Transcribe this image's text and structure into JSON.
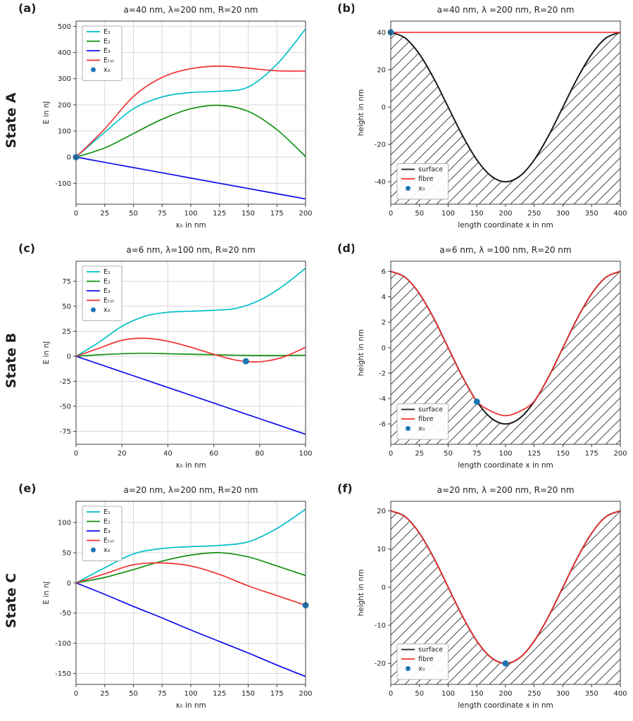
{
  "states": [
    "State A",
    "State B",
    "State C"
  ],
  "chart_data": [
    {
      "panel": "(a)",
      "title": "a=40 nm, λ=200 nm, R=20 nm",
      "type": "line",
      "xlabel": "x₀ in nm",
      "ylabel": "E in nJ",
      "xlim": [
        0,
        200
      ],
      "ylim": [
        -180,
        520
      ],
      "xticks": [
        0,
        25,
        50,
        75,
        100,
        125,
        150,
        175,
        200
      ],
      "yticks": [
        -100,
        0,
        100,
        200,
        300,
        400,
        500
      ],
      "grid": true,
      "legend_pos": "upper-left",
      "hatch_below": null,
      "series": [
        {
          "label": "E₁",
          "color": "#00bfc8",
          "x": [
            0,
            25,
            50,
            75,
            100,
            125,
            150,
            175,
            200
          ],
          "y": [
            0,
            95,
            185,
            230,
            247,
            252,
            268,
            355,
            490
          ]
        },
        {
          "label": "E₂",
          "color": "#119111",
          "x": [
            0,
            25,
            50,
            75,
            100,
            125,
            150,
            175,
            200
          ],
          "y": [
            0,
            35,
            90,
            145,
            185,
            198,
            175,
            105,
            2
          ]
        },
        {
          "label": "E₃",
          "color": "#0d0dee",
          "x": [
            0,
            25,
            50,
            75,
            100,
            125,
            150,
            175,
            200
          ],
          "y": [
            0,
            -20,
            -40,
            -60,
            -80,
            -100,
            -120,
            -140,
            -160
          ]
        },
        {
          "label": "Eₜₒₜ",
          "color": "#f03030",
          "x": [
            0,
            25,
            50,
            75,
            100,
            125,
            150,
            175,
            200
          ],
          "y": [
            0,
            108,
            232,
            305,
            338,
            348,
            340,
            330,
            329
          ]
        }
      ],
      "marker": {
        "label": "x₀",
        "color": "#1f77b4",
        "x": 0,
        "y": 0
      }
    },
    {
      "panel": "(b)",
      "title": "a=40 nm, λ =200 nm, R=20 nm",
      "type": "line",
      "xlabel": "length coordinate x in nm",
      "ylabel": "height in nm",
      "xlim": [
        0,
        400
      ],
      "ylim": [
        -52,
        46
      ],
      "xticks": [
        0,
        50,
        100,
        150,
        200,
        250,
        300,
        350,
        400
      ],
      "yticks": [
        -40,
        -20,
        0,
        20,
        40
      ],
      "grid": false,
      "legend_pos": "lower-left",
      "hatch_below": "surface",
      "series": [
        {
          "label": "surface",
          "color": "#1a1a1a",
          "x": [
            0,
            25,
            50,
            75,
            100,
            125,
            150,
            175,
            200,
            225,
            250,
            275,
            300,
            325,
            350,
            375,
            400
          ],
          "y": [
            40,
            36.96,
            28.28,
            15.31,
            0,
            -15.31,
            -28.28,
            -36.96,
            -40,
            -36.96,
            -28.28,
            -15.31,
            0,
            15.31,
            28.28,
            36.96,
            40
          ]
        },
        {
          "label": "fibre",
          "color": "#f03030",
          "x": [
            0,
            400
          ],
          "y": [
            40,
            40
          ]
        }
      ],
      "marker": {
        "label": "x₀",
        "color": "#1f77b4",
        "x": 0,
        "y": 40
      }
    },
    {
      "panel": "(c)",
      "title": "a=6 nm, λ=100 nm, R=20 nm",
      "type": "line",
      "xlabel": "x₀ in nm",
      "ylabel": "E in nJ",
      "xlim": [
        0,
        100
      ],
      "ylim": [
        -88,
        95
      ],
      "xticks": [
        0,
        20,
        40,
        60,
        80,
        100
      ],
      "yticks": [
        -75,
        -50,
        -25,
        0,
        25,
        50,
        75
      ],
      "grid": true,
      "legend_pos": "upper-left",
      "hatch_below": null,
      "series": [
        {
          "label": "E₁",
          "color": "#00bfc8",
          "x": [
            0,
            10,
            20,
            30,
            40,
            50,
            60,
            70,
            80,
            90,
            100
          ],
          "y": [
            0,
            14,
            30,
            40,
            44,
            45,
            46,
            48,
            56,
            70,
            88
          ]
        },
        {
          "label": "E₂",
          "color": "#119111",
          "x": [
            0,
            10,
            20,
            30,
            40,
            50,
            60,
            70,
            80,
            90,
            100
          ],
          "y": [
            0,
            1.5,
            2.5,
            3,
            2.5,
            2,
            1.5,
            1,
            0.8,
            0.8,
            1
          ]
        },
        {
          "label": "E₃",
          "color": "#0d0dee",
          "x": [
            0,
            10,
            20,
            30,
            40,
            50,
            60,
            70,
            80,
            90,
            100
          ],
          "y": [
            0,
            -7.8,
            -15.6,
            -23.4,
            -31.2,
            -39,
            -46.8,
            -54.6,
            -62.4,
            -70.2,
            -78
          ]
        },
        {
          "label": "Eₜₒₜ",
          "color": "#f03030",
          "x": [
            0,
            10,
            20,
            30,
            40,
            50,
            60,
            70,
            80,
            90,
            100
          ],
          "y": [
            0,
            8,
            16,
            18,
            15,
            9,
            2,
            -4,
            -5.5,
            -1,
            9
          ]
        }
      ],
      "marker": {
        "label": "x₀",
        "color": "#1f77b4",
        "x": 74,
        "y": -5
      }
    },
    {
      "panel": "(d)",
      "title": "a=6 nm, λ =100 nm, R=20 nm",
      "type": "line",
      "xlabel": "length coordinate x in nm",
      "ylabel": "height in nm",
      "xlim": [
        0,
        200
      ],
      "ylim": [
        -7.6,
        6.8
      ],
      "xticks": [
        0,
        25,
        50,
        75,
        100,
        125,
        150,
        175,
        200
      ],
      "yticks": [
        -6,
        -4,
        -2,
        0,
        2,
        4,
        6
      ],
      "grid": false,
      "legend_pos": "lower-left",
      "hatch_below": "surface",
      "series": [
        {
          "label": "surface",
          "color": "#1a1a1a",
          "x": [
            0,
            12.5,
            25,
            37.5,
            50,
            62.5,
            75,
            87.5,
            100,
            112.5,
            125,
            137.5,
            150,
            162.5,
            175,
            187.5,
            200
          ],
          "y": [
            6,
            5.54,
            4.24,
            2.3,
            0,
            -2.3,
            -4.24,
            -5.54,
            -6,
            -5.54,
            -4.24,
            -2.3,
            0,
            2.3,
            4.24,
            5.54,
            6
          ]
        },
        {
          "label": "fibre",
          "color": "#f03030",
          "x": [
            0,
            12.5,
            25,
            37.5,
            50,
            62.5,
            75,
            87.5,
            100,
            112.5,
            125,
            137.5,
            150,
            162.5,
            175,
            187.5,
            200
          ],
          "y": [
            6,
            5.54,
            4.24,
            2.3,
            0,
            -2.3,
            -4.2,
            -5.0,
            -5.35,
            -5.0,
            -4.2,
            -2.3,
            0,
            2.3,
            4.24,
            5.54,
            6
          ]
        }
      ],
      "marker": {
        "label": "x₀",
        "color": "#1f77b4",
        "x": 75,
        "y": -4.25
      }
    },
    {
      "panel": "(e)",
      "title": "a=20 nm, λ=200 nm, R=20 nm",
      "type": "line",
      "xlabel": "x₀ in nm",
      "ylabel": "E in nJ",
      "xlim": [
        0,
        200
      ],
      "ylim": [
        -168,
        135
      ],
      "xticks": [
        0,
        25,
        50,
        75,
        100,
        125,
        150,
        175,
        200
      ],
      "yticks": [
        -150,
        -100,
        -50,
        0,
        50,
        100
      ],
      "grid": true,
      "legend_pos": "upper-left",
      "hatch_below": null,
      "series": [
        {
          "label": "E₁",
          "color": "#00bfc8",
          "x": [
            0,
            25,
            50,
            75,
            100,
            125,
            150,
            175,
            200
          ],
          "y": [
            0,
            25,
            48,
            57,
            60,
            62,
            68,
            90,
            122
          ]
        },
        {
          "label": "E₂",
          "color": "#119111",
          "x": [
            0,
            25,
            50,
            75,
            100,
            125,
            150,
            175,
            200
          ],
          "y": [
            0,
            9,
            22,
            36,
            46,
            50,
            43,
            28,
            12
          ]
        },
        {
          "label": "E₃",
          "color": "#0d0dee",
          "x": [
            0,
            25,
            50,
            75,
            100,
            125,
            150,
            175,
            200
          ],
          "y": [
            0,
            -19,
            -39,
            -58,
            -78,
            -97,
            -116,
            -136,
            -155
          ]
        },
        {
          "label": "Eₜₒₜ",
          "color": "#f03030",
          "x": [
            0,
            25,
            50,
            75,
            100,
            125,
            150,
            175,
            200
          ],
          "y": [
            0,
            15,
            30,
            33,
            28,
            14,
            -5,
            -21,
            -37
          ]
        }
      ],
      "marker": {
        "label": "x₀",
        "color": "#1f77b4",
        "x": 200,
        "y": -37
      }
    },
    {
      "panel": "(f)",
      "title": "a=20 nm, λ =200 nm, R=20 nm",
      "type": "line",
      "xlabel": "length coordinate x in nm",
      "ylabel": "height in nm",
      "xlim": [
        0,
        400
      ],
      "ylim": [
        -25.5,
        22.5
      ],
      "xticks": [
        0,
        50,
        100,
        150,
        200,
        250,
        300,
        350,
        400
      ],
      "yticks": [
        -20,
        -10,
        0,
        10,
        20
      ],
      "grid": false,
      "legend_pos": "lower-left",
      "hatch_below": "surface",
      "series": [
        {
          "label": "surface",
          "color": "#1a1a1a",
          "x": [
            0,
            25,
            50,
            75,
            100,
            125,
            150,
            175,
            200,
            225,
            250,
            275,
            300,
            325,
            350,
            375,
            400
          ],
          "y": [
            20,
            18.48,
            14.14,
            7.65,
            0,
            -7.65,
            -14.14,
            -18.48,
            -20,
            -18.48,
            -14.14,
            -7.65,
            0,
            7.65,
            14.14,
            18.48,
            20
          ]
        },
        {
          "label": "fibre",
          "color": "#f03030",
          "x": [
            0,
            25,
            50,
            75,
            100,
            125,
            150,
            175,
            200,
            225,
            250,
            275,
            300,
            325,
            350,
            375,
            400
          ],
          "y": [
            20,
            18.48,
            14.14,
            7.65,
            0,
            -7.65,
            -14.14,
            -18.48,
            -20,
            -18.48,
            -14.14,
            -7.65,
            0,
            7.65,
            14.14,
            18.48,
            20
          ]
        }
      ],
      "marker": {
        "label": "x₀",
        "color": "#1f77b4",
        "x": 200,
        "y": -20
      }
    }
  ]
}
